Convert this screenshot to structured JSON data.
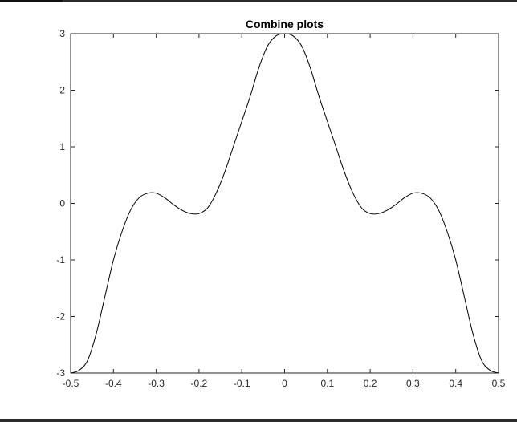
{
  "chart_data": {
    "type": "line",
    "title": "Combine plots",
    "xlabel": "",
    "ylabel": "",
    "xlim": [
      -0.5,
      0.5
    ],
    "ylim": [
      -3,
      3
    ],
    "x_ticks": [
      "-0.5",
      "-0.4",
      "-0.3",
      "-0.2",
      "-0.1",
      "0",
      "0.1",
      "0.2",
      "0.3",
      "0.4",
      "0.5"
    ],
    "y_ticks": [
      "3",
      "2",
      "1",
      "0",
      "-1",
      "-2",
      "-3"
    ],
    "grid": false,
    "box": true,
    "line_color": "#000000",
    "series": [
      {
        "x": [
          -0.5,
          -0.48,
          -0.46,
          -0.44,
          -0.42,
          -0.4,
          -0.38,
          -0.36,
          -0.34,
          -0.32,
          -0.3,
          -0.28,
          -0.26,
          -0.24,
          -0.22,
          -0.2,
          -0.18,
          -0.16,
          -0.14,
          -0.12,
          -0.1,
          -0.08,
          -0.06,
          -0.04,
          -0.02,
          0,
          0.02,
          0.04,
          0.06,
          0.08,
          0.1,
          0.12,
          0.14,
          0.16,
          0.18,
          0.2,
          0.22,
          0.24,
          0.26,
          0.28,
          0.3,
          0.32,
          0.34,
          0.36,
          0.38,
          0.4,
          0.42,
          0.44,
          0.46,
          0.48,
          0.5
        ],
        "y": [
          -3,
          -2.95,
          -2.77,
          -2.3,
          -1.65,
          -1.0,
          -0.5,
          -0.12,
          0.1,
          0.18,
          0.18,
          0.1,
          -0.02,
          -0.12,
          -0.18,
          -0.18,
          -0.08,
          0.18,
          0.55,
          1.0,
          1.45,
          1.9,
          2.4,
          2.78,
          2.96,
          3.0,
          2.96,
          2.78,
          2.4,
          1.9,
          1.45,
          1.0,
          0.55,
          0.18,
          -0.08,
          -0.18,
          -0.18,
          -0.12,
          -0.02,
          0.1,
          0.18,
          0.18,
          0.1,
          -0.12,
          -0.5,
          -1.0,
          -1.65,
          -2.3,
          -2.77,
          -2.95,
          -3.0
        ]
      }
    ]
  }
}
